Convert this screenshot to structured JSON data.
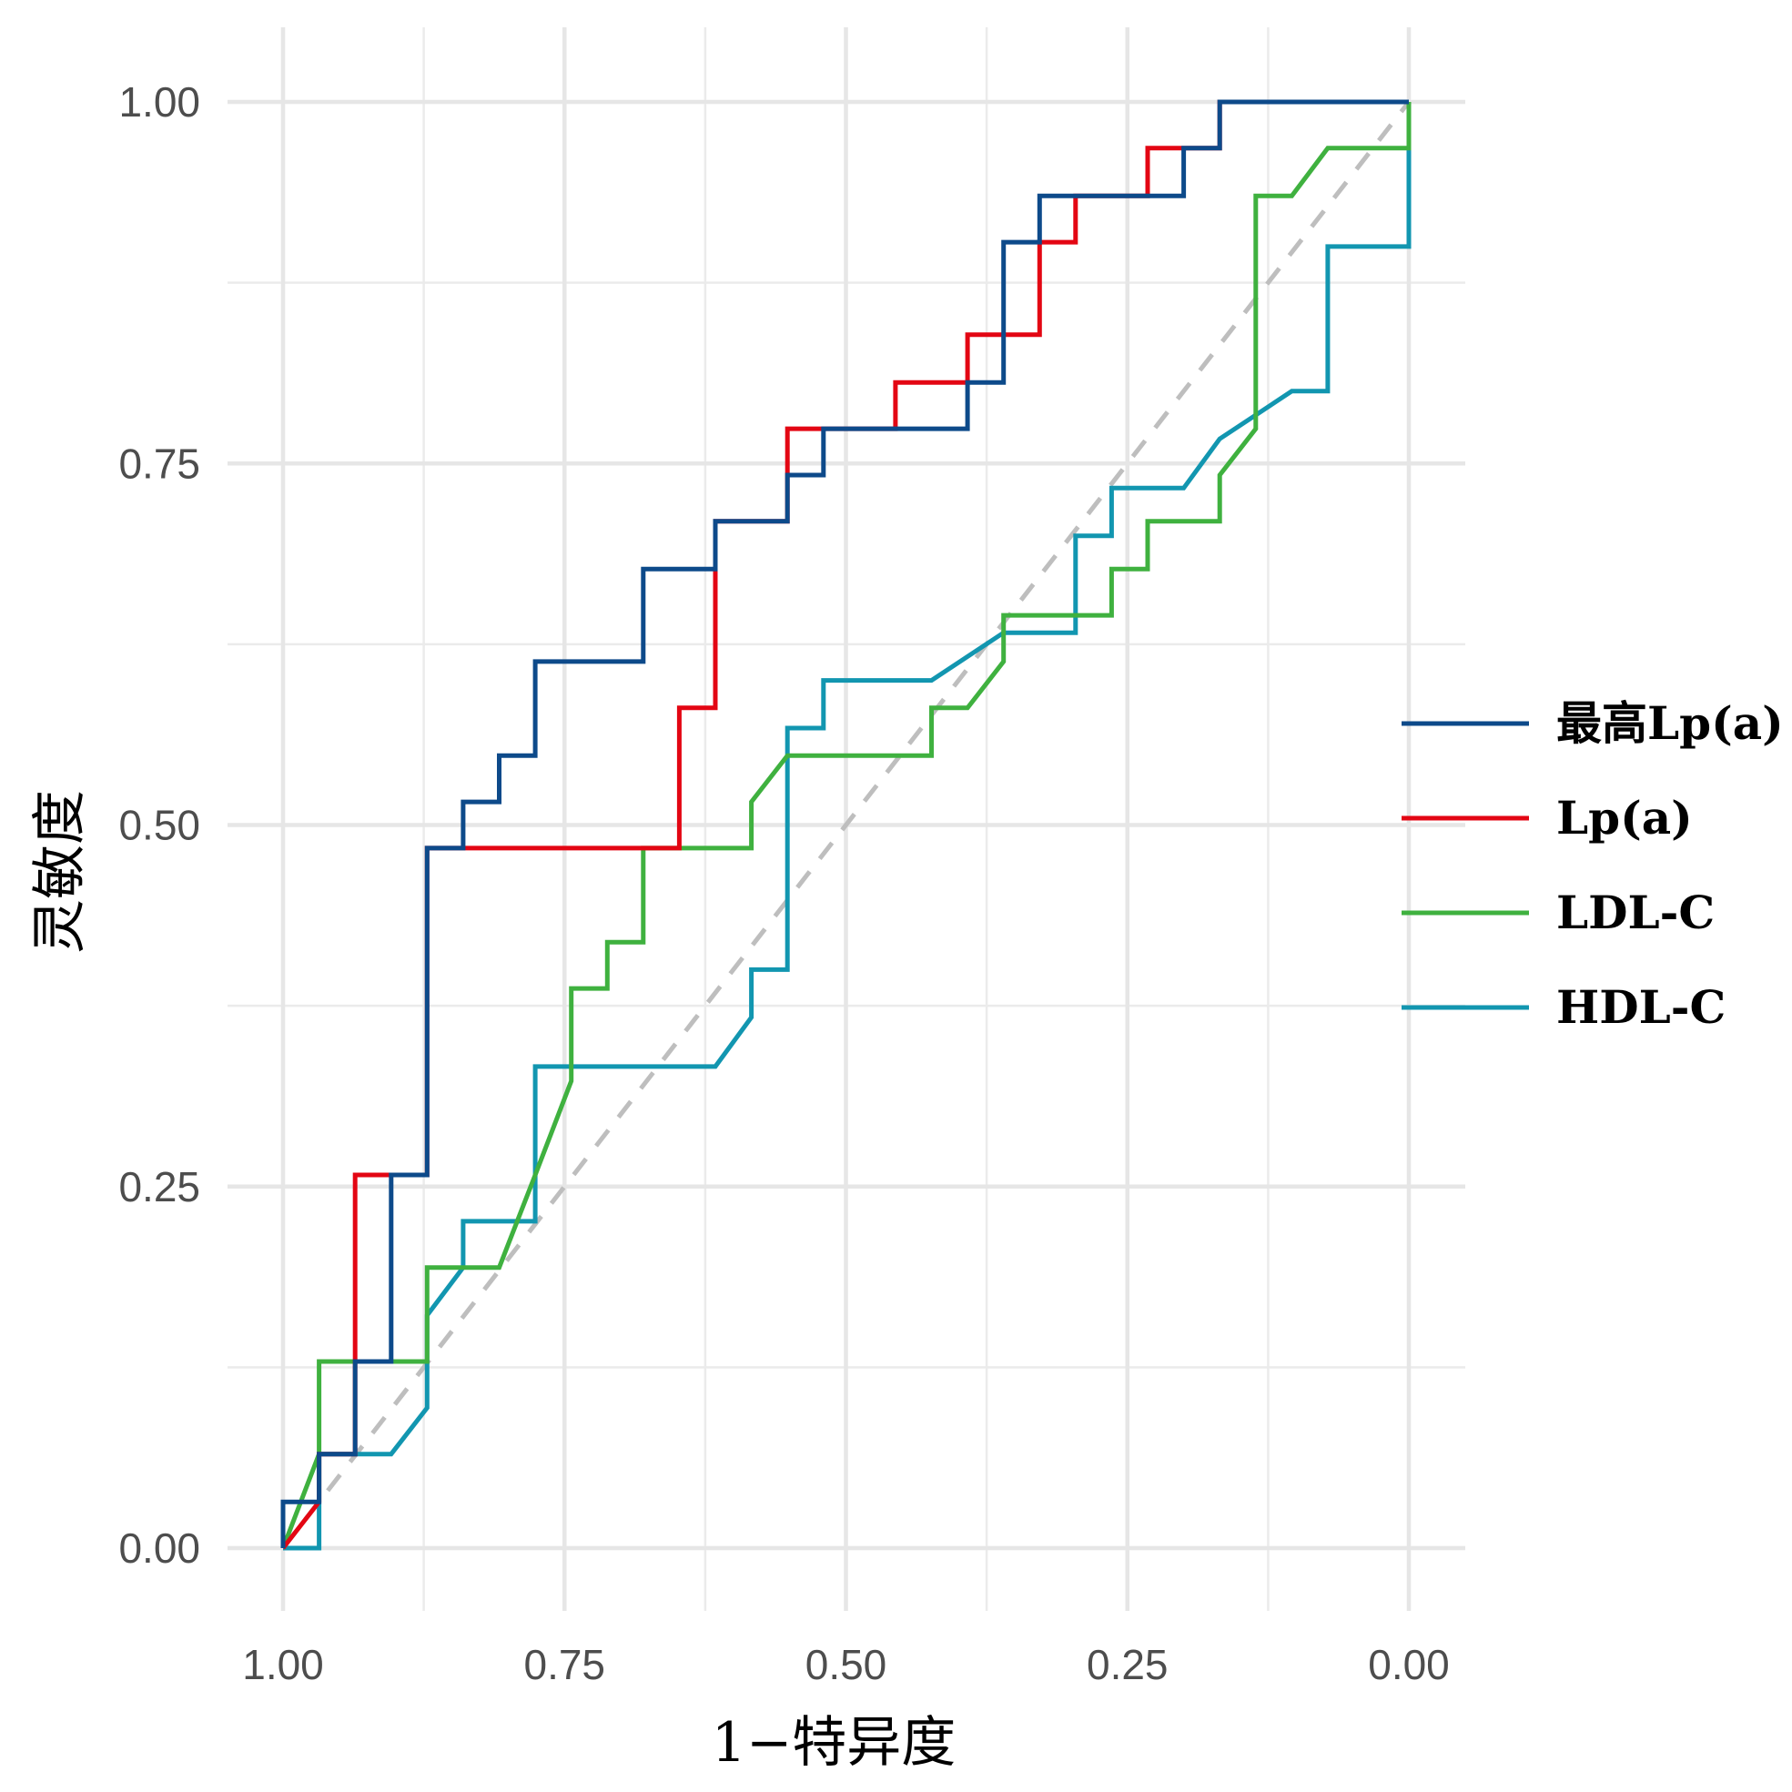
{
  "chart_data": {
    "type": "line",
    "title": "",
    "xlabel": "1−特异度",
    "ylabel": "灵敏度",
    "xlim": [
      1.0,
      0.0
    ],
    "ylim": [
      0.0,
      1.0
    ],
    "x_reversed": true,
    "x_ticks": [
      1.0,
      0.75,
      0.5,
      0.25,
      0.0
    ],
    "x_tick_labels": [
      "1.00",
      "0.75",
      "0.50",
      "0.25",
      "0.00"
    ],
    "y_ticks": [
      0.0,
      0.25,
      0.5,
      0.75,
      1.0
    ],
    "y_tick_labels": [
      "0.00",
      "0.25",
      "0.50",
      "0.75",
      "1.00"
    ],
    "grid": true,
    "legend_position": "right",
    "reference_line": {
      "from": [
        1.0,
        0.0
      ],
      "to": [
        0.0,
        1.0
      ],
      "color": "#bebebe",
      "style": "dashed"
    },
    "series": [
      {
        "name": "最高Lp(a)",
        "color": "#0d4a8a",
        "x": [
          1.0,
          1.0,
          0.968,
          0.968,
          0.936,
          0.936,
          0.904,
          0.904,
          0.872,
          0.872,
          0.84,
          0.84,
          0.808,
          0.808,
          0.776,
          0.776,
          0.68,
          0.68,
          0.616,
          0.616,
          0.552,
          0.552,
          0.52,
          0.52,
          0.488,
          0.488,
          0.456,
          0.456,
          0.392,
          0.392,
          0.36,
          0.36,
          0.328,
          0.328,
          0.296,
          0.296,
          0.264,
          0.264,
          0.232,
          0.232,
          0.2,
          0.2,
          0.168,
          0.168,
          0.0
        ],
        "y": [
          0.0,
          0.032,
          0.032,
          0.065,
          0.065,
          0.129,
          0.129,
          0.258,
          0.258,
          0.484,
          0.484,
          0.516,
          0.516,
          0.548,
          0.548,
          0.613,
          0.613,
          0.677,
          0.677,
          0.71,
          0.71,
          0.742,
          0.742,
          0.774,
          0.774,
          0.774,
          0.774,
          0.774,
          0.774,
          0.806,
          0.806,
          0.903,
          0.903,
          0.935,
          0.935,
          0.935,
          0.935,
          0.935,
          0.935,
          0.935,
          0.935,
          0.968,
          0.968,
          1.0,
          1.0
        ]
      },
      {
        "name": "Lp(a)",
        "color": "#e30613",
        "x": [
          1.0,
          0.968,
          0.968,
          0.936,
          0.936,
          0.872,
          0.872,
          0.648,
          0.648,
          0.616,
          0.616,
          0.552,
          0.552,
          0.456,
          0.456,
          0.392,
          0.392,
          0.328,
          0.328,
          0.296,
          0.296,
          0.232,
          0.232,
          0.168,
          0.168,
          0.0
        ],
        "y": [
          0.0,
          0.032,
          0.065,
          0.065,
          0.258,
          0.258,
          0.484,
          0.484,
          0.581,
          0.581,
          0.71,
          0.71,
          0.774,
          0.774,
          0.806,
          0.806,
          0.839,
          0.839,
          0.903,
          0.903,
          0.935,
          0.935,
          0.968,
          0.968,
          1.0,
          1.0
        ]
      },
      {
        "name": "LDL-C",
        "color": "#3fb13f",
        "x": [
          1.0,
          0.968,
          0.968,
          0.872,
          0.872,
          0.808,
          0.776,
          0.744,
          0.744,
          0.712,
          0.712,
          0.68,
          0.68,
          0.584,
          0.584,
          0.552,
          0.424,
          0.424,
          0.392,
          0.36,
          0.36,
          0.264,
          0.264,
          0.232,
          0.232,
          0.168,
          0.168,
          0.136,
          0.136,
          0.104,
          0.072,
          0.0,
          0.0
        ],
        "y": [
          0.0,
          0.065,
          0.129,
          0.129,
          0.194,
          0.194,
          0.258,
          0.323,
          0.387,
          0.387,
          0.419,
          0.419,
          0.484,
          0.484,
          0.516,
          0.548,
          0.548,
          0.581,
          0.581,
          0.613,
          0.645,
          0.645,
          0.677,
          0.677,
          0.71,
          0.71,
          0.742,
          0.774,
          0.935,
          0.935,
          0.968,
          0.968,
          1.0
        ]
      },
      {
        "name": "HDL-C",
        "color": "#1296b0",
        "x": [
          1.0,
          0.968,
          0.968,
          0.904,
          0.872,
          0.872,
          0.84,
          0.84,
          0.776,
          0.776,
          0.616,
          0.584,
          0.584,
          0.552,
          0.552,
          0.52,
          0.52,
          0.424,
          0.36,
          0.296,
          0.296,
          0.264,
          0.264,
          0.2,
          0.168,
          0.104,
          0.072,
          0.072,
          0.0,
          0.0
        ],
        "y": [
          0.0,
          0.0,
          0.065,
          0.065,
          0.097,
          0.161,
          0.194,
          0.226,
          0.226,
          0.333,
          0.333,
          0.367,
          0.4,
          0.4,
          0.567,
          0.567,
          0.6,
          0.6,
          0.633,
          0.633,
          0.7,
          0.7,
          0.733,
          0.733,
          0.767,
          0.8,
          0.8,
          0.9,
          0.9,
          1.0
        ]
      }
    ]
  }
}
